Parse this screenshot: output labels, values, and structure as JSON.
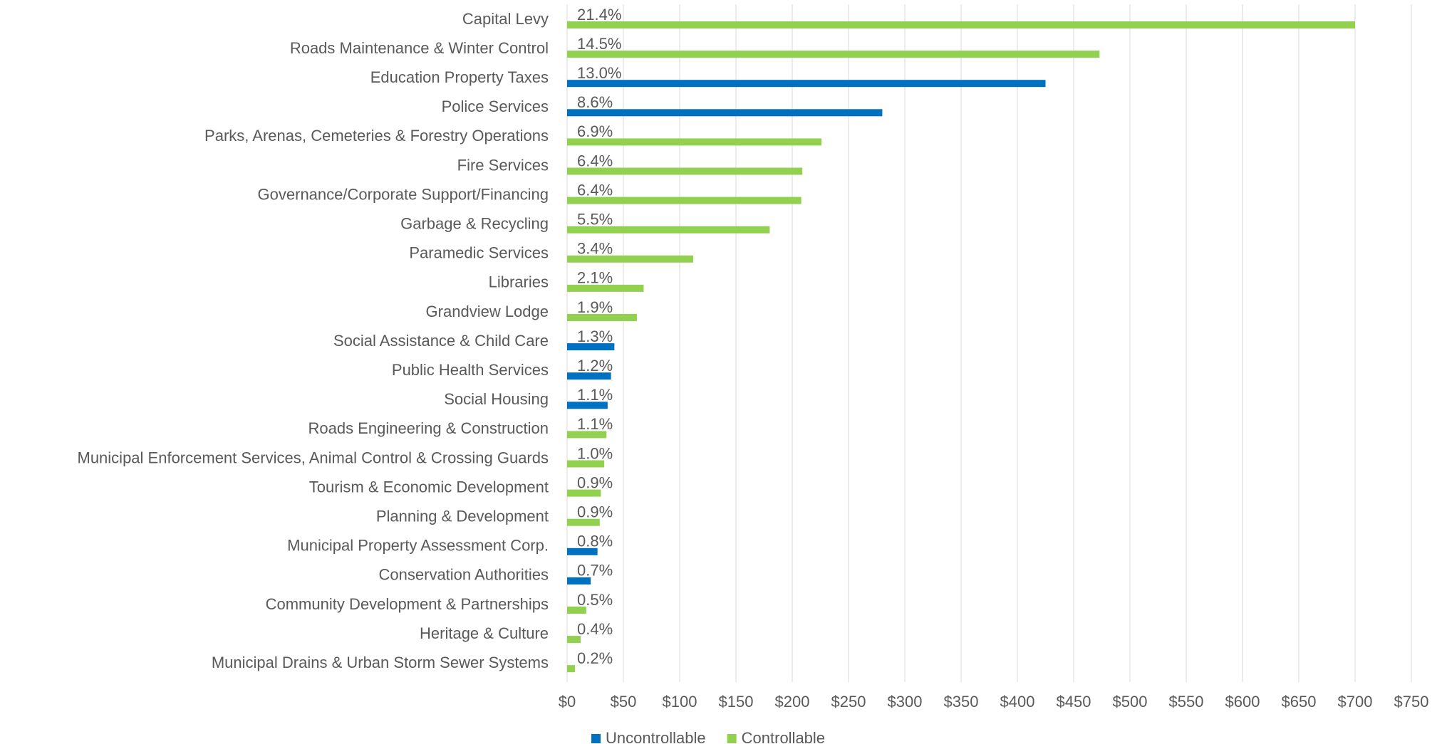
{
  "chart_data": {
    "type": "barh",
    "categories": [
      "Capital Levy",
      "Roads Maintenance & Winter Control",
      "Education Property Taxes",
      "Police Services",
      "Parks, Arenas, Cemeteries & Forestry Operations",
      "Fire Services",
      "Governance/Corporate Support/Financing",
      "Garbage & Recycling",
      "Paramedic Services",
      "Libraries",
      "Grandview Lodge",
      "Social Assistance & Child Care",
      "Public Health Services",
      "Social Housing",
      "Roads Engineering & Construction",
      "Municipal Enforcement Services, Animal Control & Crossing Guards",
      "Tourism & Economic Development",
      "Planning & Development",
      "Municipal Property Assessment Corp.",
      "Conservation Authorities",
      "Community Development & Partnerships",
      "Heritage & Culture",
      "Municipal Drains & Urban Storm Sewer Systems"
    ],
    "series": [
      {
        "name": "Uncontrollable",
        "color": "#0070c0",
        "values": [
          null,
          null,
          425,
          280,
          null,
          null,
          null,
          null,
          null,
          null,
          null,
          42,
          39,
          36,
          null,
          null,
          null,
          null,
          27,
          21,
          null,
          null,
          null
        ]
      },
      {
        "name": "Controllable",
        "color": "#92d050",
        "values": [
          700,
          473,
          null,
          null,
          226,
          209,
          208,
          180,
          112,
          68,
          62,
          null,
          null,
          null,
          35,
          33,
          30,
          29,
          null,
          null,
          17,
          12,
          7
        ]
      }
    ],
    "share_labels": [
      "21.4%",
      "14.5%",
      "13.0%",
      "8.6%",
      "6.9%",
      "6.4%",
      "6.4%",
      "5.5%",
      "3.4%",
      "2.1%",
      "1.9%",
      "1.3%",
      "1.2%",
      "1.1%",
      "1.1%",
      "1.0%",
      "0.9%",
      "0.9%",
      "0.8%",
      "0.7%",
      "0.5%",
      "0.4%",
      "0.2%"
    ],
    "xlim": [
      0,
      750
    ],
    "xticks": [
      {
        "value": 0,
        "label": "$0"
      },
      {
        "value": 50,
        "label": "$50"
      },
      {
        "value": 100,
        "label": "$100"
      },
      {
        "value": 150,
        "label": "$150"
      },
      {
        "value": 200,
        "label": "$200"
      },
      {
        "value": 250,
        "label": "$250"
      },
      {
        "value": 300,
        "label": "$300"
      },
      {
        "value": 350,
        "label": "$350"
      },
      {
        "value": 400,
        "label": "$400"
      },
      {
        "value": 450,
        "label": "$450"
      },
      {
        "value": 500,
        "label": "$500"
      },
      {
        "value": 550,
        "label": "$550"
      },
      {
        "value": 600,
        "label": "$600"
      },
      {
        "value": 650,
        "label": "$650"
      },
      {
        "value": 700,
        "label": "$700"
      },
      {
        "value": 750,
        "label": "$750"
      }
    ],
    "grid": true,
    "legend": "bottom"
  }
}
